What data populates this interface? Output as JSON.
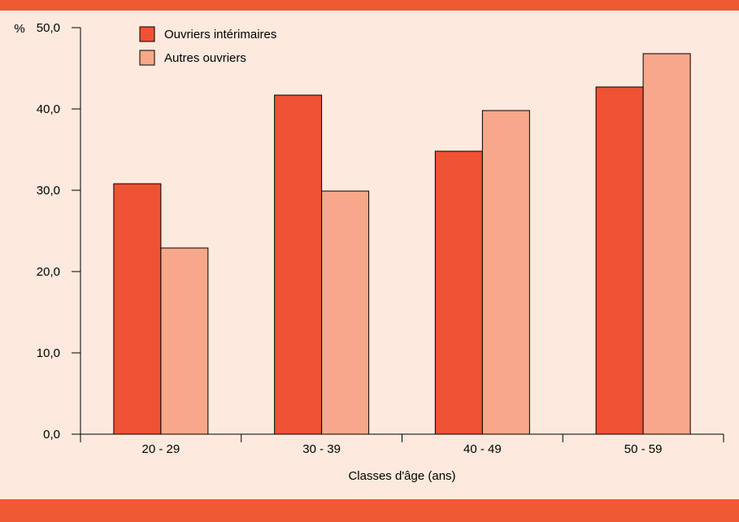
{
  "colors": {
    "background": "#fde9de",
    "band": "#ef5a35",
    "axis": "#000000"
  },
  "chart_data": {
    "type": "bar",
    "title": "",
    "xlabel": "Classes d'âge (ans)",
    "ylabel": "%",
    "ylim": [
      0,
      50
    ],
    "yticks": [
      "0,0",
      "10,0",
      "20,0",
      "30,0",
      "40,0",
      "50,0"
    ],
    "categories": [
      "20 - 29",
      "30 - 39",
      "40 - 49",
      "50 - 59"
    ],
    "series": [
      {
        "name": "Ouvriers intérimaires",
        "color": "#ef5235",
        "values": [
          30.8,
          41.7,
          34.8,
          42.7
        ]
      },
      {
        "name": "Autres ouvriers",
        "color": "#f7a88a",
        "values": [
          22.9,
          29.9,
          39.8,
          46.8
        ]
      }
    ],
    "legend": "top-left",
    "grid": false
  }
}
